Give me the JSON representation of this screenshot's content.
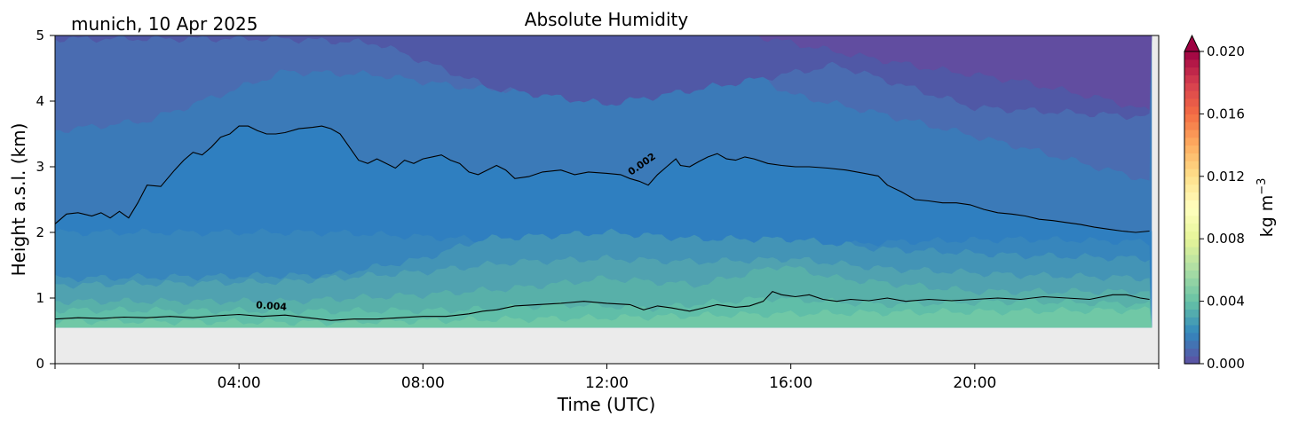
{
  "chart_data": {
    "type": "heatmap",
    "title": "Absolute Humidity",
    "subtitle": "munich, 10 Apr 2025",
    "xlabel": "Time (UTC)",
    "ylabel": "Height a.s.l. (km)",
    "xlim": [
      0,
      24
    ],
    "ylim": [
      0,
      5
    ],
    "x_ticks": [
      {
        "value": 4,
        "label": "04:00"
      },
      {
        "value": 8,
        "label": "08:00"
      },
      {
        "value": 12,
        "label": "12:00"
      },
      {
        "value": 16,
        "label": "16:00"
      },
      {
        "value": 20,
        "label": "20:00"
      }
    ],
    "y_ticks": [
      {
        "value": 0,
        "label": "0"
      },
      {
        "value": 1,
        "label": "1"
      },
      {
        "value": 2,
        "label": "2"
      },
      {
        "value": 3,
        "label": "3"
      },
      {
        "value": 4,
        "label": "4"
      },
      {
        "value": 5,
        "label": "5"
      }
    ],
    "no_data_below_km": 0.55,
    "colorbar": {
      "label": "kg m",
      "label_sup": "−3",
      "min": 0.0,
      "max": 0.02,
      "extend": "max",
      "ticks": [
        {
          "value": 0.0,
          "label": "0.000"
        },
        {
          "value": 0.004,
          "label": "0.004"
        },
        {
          "value": 0.008,
          "label": "0.008"
        },
        {
          "value": 0.012,
          "label": "0.012"
        },
        {
          "value": 0.016,
          "label": "0.016"
        },
        {
          "value": 0.02,
          "label": "0.020"
        }
      ],
      "colors": [
        "#5e4fa2",
        "#3288bd",
        "#66c2a5",
        "#abdda4",
        "#e6f598",
        "#ffffbf",
        "#fee08b",
        "#fdae61",
        "#f46d43",
        "#d53e4f",
        "#9e0142"
      ],
      "extend_color": "#9e0142"
    },
    "contours": [
      {
        "level_label": "0.002",
        "label_at": [
          12.8,
          3.0
        ],
        "label_angle": -35,
        "points": [
          [
            0,
            2.13
          ],
          [
            0.25,
            2.28
          ],
          [
            0.5,
            2.3
          ],
          [
            0.8,
            2.25
          ],
          [
            1.0,
            2.3
          ],
          [
            1.2,
            2.22
          ],
          [
            1.4,
            2.32
          ],
          [
            1.6,
            2.22
          ],
          [
            1.8,
            2.45
          ],
          [
            2.0,
            2.72
          ],
          [
            2.3,
            2.7
          ],
          [
            2.6,
            2.95
          ],
          [
            2.8,
            3.1
          ],
          [
            3.0,
            3.22
          ],
          [
            3.2,
            3.18
          ],
          [
            3.4,
            3.3
          ],
          [
            3.6,
            3.45
          ],
          [
            3.8,
            3.5
          ],
          [
            4.0,
            3.62
          ],
          [
            4.2,
            3.62
          ],
          [
            4.4,
            3.55
          ],
          [
            4.6,
            3.5
          ],
          [
            4.8,
            3.5
          ],
          [
            5.0,
            3.52
          ],
          [
            5.3,
            3.58
          ],
          [
            5.6,
            3.6
          ],
          [
            5.8,
            3.62
          ],
          [
            6.0,
            3.58
          ],
          [
            6.2,
            3.5
          ],
          [
            6.4,
            3.3
          ],
          [
            6.6,
            3.1
          ],
          [
            6.8,
            3.05
          ],
          [
            7.0,
            3.12
          ],
          [
            7.2,
            3.05
          ],
          [
            7.4,
            2.98
          ],
          [
            7.6,
            3.1
          ],
          [
            7.8,
            3.05
          ],
          [
            8.0,
            3.12
          ],
          [
            8.2,
            3.15
          ],
          [
            8.4,
            3.18
          ],
          [
            8.6,
            3.1
          ],
          [
            8.8,
            3.05
          ],
          [
            9.0,
            2.92
          ],
          [
            9.2,
            2.88
          ],
          [
            9.4,
            2.95
          ],
          [
            9.6,
            3.02
          ],
          [
            9.8,
            2.95
          ],
          [
            10.0,
            2.82
          ],
          [
            10.3,
            2.85
          ],
          [
            10.6,
            2.92
          ],
          [
            11.0,
            2.95
          ],
          [
            11.3,
            2.88
          ],
          [
            11.6,
            2.92
          ],
          [
            12.0,
            2.9
          ],
          [
            12.3,
            2.88
          ],
          [
            12.5,
            2.82
          ],
          [
            12.7,
            2.78
          ],
          [
            12.9,
            2.72
          ],
          [
            13.1,
            2.88
          ],
          [
            13.3,
            3.0
          ],
          [
            13.5,
            3.12
          ],
          [
            13.6,
            3.02
          ],
          [
            13.8,
            3.0
          ],
          [
            14.0,
            3.08
          ],
          [
            14.2,
            3.15
          ],
          [
            14.4,
            3.2
          ],
          [
            14.6,
            3.12
          ],
          [
            14.8,
            3.1
          ],
          [
            15.0,
            3.15
          ],
          [
            15.2,
            3.12
          ],
          [
            15.5,
            3.05
          ],
          [
            15.8,
            3.02
          ],
          [
            16.1,
            3.0
          ],
          [
            16.4,
            3.0
          ],
          [
            16.8,
            2.98
          ],
          [
            17.2,
            2.95
          ],
          [
            17.6,
            2.9
          ],
          [
            17.9,
            2.86
          ],
          [
            18.1,
            2.72
          ],
          [
            18.4,
            2.62
          ],
          [
            18.7,
            2.5
          ],
          [
            19.0,
            2.48
          ],
          [
            19.3,
            2.45
          ],
          [
            19.6,
            2.45
          ],
          [
            19.9,
            2.42
          ],
          [
            20.2,
            2.35
          ],
          [
            20.5,
            2.3
          ],
          [
            20.8,
            2.28
          ],
          [
            21.1,
            2.25
          ],
          [
            21.4,
            2.2
          ],
          [
            21.7,
            2.18
          ],
          [
            22.0,
            2.15
          ],
          [
            22.3,
            2.12
          ],
          [
            22.6,
            2.08
          ],
          [
            22.9,
            2.05
          ],
          [
            23.2,
            2.02
          ],
          [
            23.5,
            2.0
          ],
          [
            23.8,
            2.02
          ]
        ]
      },
      {
        "level_label": "0.004",
        "label_at": [
          4.7,
          0.83
        ],
        "label_angle": 4,
        "points": [
          [
            0,
            0.68
          ],
          [
            0.5,
            0.7
          ],
          [
            1.0,
            0.69
          ],
          [
            1.5,
            0.71
          ],
          [
            2.0,
            0.7
          ],
          [
            2.5,
            0.72
          ],
          [
            3.0,
            0.7
          ],
          [
            3.5,
            0.73
          ],
          [
            4.0,
            0.75
          ],
          [
            4.5,
            0.72
          ],
          [
            5.0,
            0.74
          ],
          [
            5.5,
            0.7
          ],
          [
            6.0,
            0.66
          ],
          [
            6.5,
            0.68
          ],
          [
            7.0,
            0.68
          ],
          [
            7.5,
            0.7
          ],
          [
            8.0,
            0.72
          ],
          [
            8.5,
            0.72
          ],
          [
            9.0,
            0.76
          ],
          [
            9.3,
            0.8
          ],
          [
            9.6,
            0.82
          ],
          [
            10.0,
            0.88
          ],
          [
            10.5,
            0.9
          ],
          [
            11.0,
            0.92
          ],
          [
            11.5,
            0.95
          ],
          [
            12.0,
            0.92
          ],
          [
            12.5,
            0.9
          ],
          [
            12.8,
            0.82
          ],
          [
            13.1,
            0.88
          ],
          [
            13.4,
            0.85
          ],
          [
            13.8,
            0.8
          ],
          [
            14.1,
            0.85
          ],
          [
            14.4,
            0.9
          ],
          [
            14.8,
            0.86
          ],
          [
            15.1,
            0.88
          ],
          [
            15.4,
            0.95
          ],
          [
            15.6,
            1.1
          ],
          [
            15.8,
            1.05
          ],
          [
            16.1,
            1.02
          ],
          [
            16.4,
            1.05
          ],
          [
            16.7,
            0.98
          ],
          [
            17.0,
            0.95
          ],
          [
            17.3,
            0.98
          ],
          [
            17.7,
            0.96
          ],
          [
            18.1,
            1.0
          ],
          [
            18.5,
            0.95
          ],
          [
            19.0,
            0.98
          ],
          [
            19.5,
            0.96
          ],
          [
            20.0,
            0.98
          ],
          [
            20.5,
            1.0
          ],
          [
            21.0,
            0.98
          ],
          [
            21.5,
            1.02
          ],
          [
            22.0,
            1.0
          ],
          [
            22.5,
            0.98
          ],
          [
            23.0,
            1.05
          ],
          [
            23.3,
            1.05
          ],
          [
            23.6,
            1.0
          ],
          [
            23.8,
            0.98
          ]
        ]
      }
    ],
    "bands": [
      {
        "color": "#3786bc",
        "top": [
          [
            0,
            2.0
          ],
          [
            6,
            2.0
          ],
          [
            9,
            1.9
          ],
          [
            12,
            1.7
          ],
          [
            15,
            1.7
          ],
          [
            18,
            1.85
          ],
          [
            21,
            1.9
          ],
          [
            24,
            1.85
          ]
        ]
      },
      {
        "color": "#4394b6",
        "top": [
          [
            0,
            1.3
          ],
          [
            6,
            1.35
          ],
          [
            8,
            1.6
          ],
          [
            9.3,
            1.9
          ],
          [
            12,
            2.0
          ],
          [
            14,
            1.9
          ],
          [
            16,
            1.9
          ],
          [
            18,
            1.75
          ],
          [
            21,
            1.65
          ],
          [
            24,
            1.6
          ]
        ]
      },
      {
        "color": "#50a2b0",
        "top": [
          [
            0,
            1.2
          ],
          [
            5,
            1.25
          ],
          [
            8,
            1.4
          ],
          [
            10,
            1.55
          ],
          [
            12,
            1.6
          ],
          [
            14,
            1.55
          ],
          [
            16,
            1.6
          ],
          [
            18,
            1.45
          ],
          [
            21,
            1.35
          ],
          [
            24,
            1.3
          ]
        ]
      },
      {
        "color": "#58b0a9",
        "top": [
          [
            0,
            0.95
          ],
          [
            5,
            0.95
          ],
          [
            8,
            1.05
          ],
          [
            10,
            1.15
          ],
          [
            12,
            1.3
          ],
          [
            14,
            1.2
          ],
          [
            15.8,
            1.5
          ],
          [
            17,
            1.3
          ],
          [
            20,
            1.1
          ],
          [
            24,
            1.1
          ]
        ]
      },
      {
        "color": "#60bea8",
        "top": [
          [
            0,
            0.82
          ],
          [
            6,
            0.8
          ],
          [
            9,
            0.82
          ],
          [
            11,
            0.9
          ],
          [
            13,
            0.85
          ],
          [
            15.5,
            1.0
          ],
          [
            18,
            0.9
          ],
          [
            21,
            0.95
          ],
          [
            24,
            0.9
          ]
        ]
      },
      {
        "color": "#70c8a6",
        "top": [
          [
            0,
            0.65
          ],
          [
            6,
            0.63
          ],
          [
            10,
            0.68
          ],
          [
            12,
            0.7
          ],
          [
            15,
            0.75
          ],
          [
            18,
            0.78
          ],
          [
            21,
            0.8
          ],
          [
            24,
            0.82
          ]
        ]
      }
    ],
    "upper_bands": [
      {
        "color": "#4a6cb1",
        "bottom": [
          [
            0,
            3.55
          ],
          [
            2,
            3.7
          ],
          [
            4,
            4.2
          ],
          [
            5,
            4.45
          ],
          [
            7,
            4.4
          ],
          [
            9,
            4.2
          ],
          [
            12,
            4.1
          ],
          [
            14,
            4.25
          ],
          [
            15,
            4.5
          ],
          [
            16,
            4.1
          ],
          [
            18,
            3.8
          ],
          [
            21,
            3.3
          ],
          [
            24,
            2.75
          ]
        ]
      },
      {
        "color": "#5058a6",
        "bottom": [
          [
            0,
            4.95
          ],
          [
            5,
            4.95
          ],
          [
            7,
            4.88
          ],
          [
            9.5,
            4.2
          ],
          [
            12,
            3.95
          ],
          [
            15,
            4.3
          ],
          [
            17,
            4.55
          ],
          [
            20,
            3.9
          ],
          [
            24,
            3.75
          ]
        ]
      },
      {
        "color": "#614da0",
        "bottom": [
          [
            15.2,
            5.0
          ],
          [
            17,
            4.75
          ],
          [
            19,
            4.5
          ],
          [
            21,
            4.3
          ],
          [
            23,
            4.0
          ],
          [
            24,
            3.8
          ]
        ]
      }
    ],
    "base_color": "#2f7fc0",
    "top_color": "#3b7ab8"
  }
}
